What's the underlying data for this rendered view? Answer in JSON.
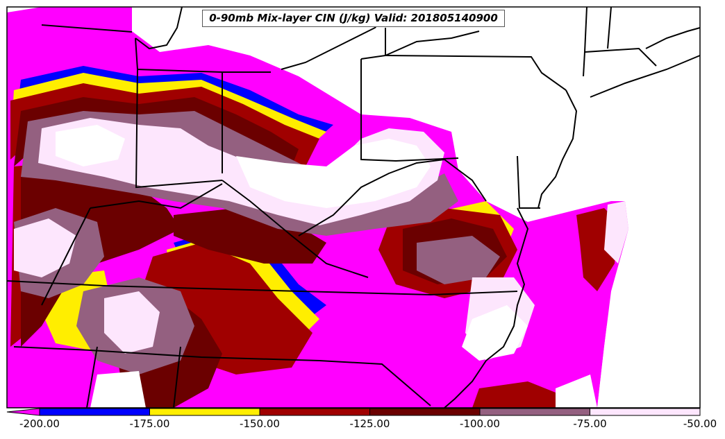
{
  "title": "0-90mb Mix-layer CIN (J/kg) Valid: 201805140900",
  "colorbar": {
    "ticks": [
      "-200.00",
      "-175.00",
      "-150.00",
      "-125.00",
      "-100.00",
      "-75.00",
      "-50.00"
    ],
    "bins": [
      {
        "from": -200,
        "to": -175,
        "color": "#0000ff"
      },
      {
        "from": -175,
        "to": -150,
        "color": "#ffee00"
      },
      {
        "from": -150,
        "to": -125,
        "color": "#a00000"
      },
      {
        "from": -125,
        "to": -100,
        "color": "#6b0000"
      },
      {
        "from": -100,
        "to": -75,
        "color": "#946080"
      },
      {
        "from": -75,
        "to": -50,
        "color": "#fde6fd"
      }
    ],
    "under_color": "#ff00ff"
  },
  "colors": {
    "magenta": "#ff00ff",
    "blue": "#0000ff",
    "yellow": "#ffee00",
    "red": "#a00000",
    "darkred": "#6b0000",
    "mauve": "#946080",
    "pale": "#fde6fd",
    "white": "#ffffff"
  }
}
